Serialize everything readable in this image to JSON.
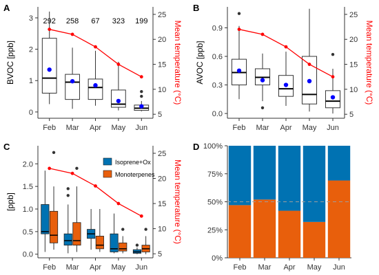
{
  "months": [
    "Feb",
    "Mar",
    "Apr",
    "May",
    "Jun"
  ],
  "colors": {
    "temp": "#ff0000",
    "mean": "#0000ff",
    "isoprene": "#0072b2",
    "monoterpenes": "#e85f0c"
  },
  "temperature": {
    "label": "Mean temperature (°C)",
    "ticks": [
      "5",
      "10",
      "15",
      "20",
      "25"
    ],
    "values": [
      22.0,
      21.0,
      18.5,
      15.0,
      12.5
    ]
  },
  "chart_data": [
    {
      "panel": "A",
      "type": "box",
      "ylabel": "BVOC [ppb]",
      "yticks": [
        "0",
        "1",
        "2",
        "3"
      ],
      "ylim": [
        -0.2,
        3.35
      ],
      "n_labels": [
        "292",
        "258",
        "67",
        "323",
        "199"
      ],
      "boxes": [
        {
          "lo": 0.25,
          "q1": 0.6,
          "med": 1.08,
          "q3": 2.35,
          "hi": 3.2,
          "mean": 1.35,
          "out": []
        },
        {
          "lo": 0.1,
          "q1": 0.4,
          "med": 0.95,
          "q3": 1.2,
          "hi": 2.05,
          "mean": 0.98,
          "out": []
        },
        {
          "lo": 0.2,
          "q1": 0.4,
          "med": 0.78,
          "q3": 1.05,
          "hi": 1.95,
          "mean": 0.85,
          "out": []
        },
        {
          "lo": 0.05,
          "q1": 0.15,
          "med": 0.25,
          "q3": 0.7,
          "hi": 1.6,
          "mean": 0.35,
          "out": []
        },
        {
          "lo": 0.02,
          "q1": 0.05,
          "med": 0.12,
          "q3": 0.22,
          "hi": 0.35,
          "mean": 0.18,
          "out": [
            0.5,
            0.65
          ]
        }
      ]
    },
    {
      "panel": "B",
      "type": "box",
      "ylabel": "AVOC [ppb]",
      "yticks": [
        "0.0",
        "0.3",
        "0.6",
        "0.9"
      ],
      "ylim": [
        -0.05,
        1.12
      ],
      "boxes": [
        {
          "lo": 0.15,
          "q1": 0.3,
          "med": 0.43,
          "q3": 0.57,
          "hi": 0.92,
          "mean": 0.45,
          "out": [
            1.05
          ]
        },
        {
          "lo": 0.13,
          "q1": 0.3,
          "med": 0.38,
          "q3": 0.47,
          "hi": 0.63,
          "mean": 0.35,
          "out": [
            0.06
          ]
        },
        {
          "lo": 0.08,
          "q1": 0.18,
          "med": 0.26,
          "q3": 0.4,
          "hi": 0.65,
          "mean": 0.3,
          "out": []
        },
        {
          "lo": 0.02,
          "q1": 0.1,
          "med": 0.2,
          "q3": 0.6,
          "hi": 1.1,
          "mean": 0.34,
          "out": []
        },
        {
          "lo": 0.0,
          "q1": 0.06,
          "med": 0.13,
          "q3": 0.24,
          "hi": 0.47,
          "mean": 0.17,
          "out": [
            0.62
          ]
        }
      ]
    },
    {
      "panel": "C",
      "type": "grouped_box",
      "ylabel": "[ppb]",
      "yticks": [
        "0.0",
        "0.5",
        "1.0",
        "1.5",
        "2.0"
      ],
      "ylim": [
        -0.08,
        2.4
      ],
      "series": [
        {
          "name": "Isoprene+Ox",
          "boxes": [
            {
              "lo": 0.05,
              "q1": 0.45,
              "med": 0.5,
              "q3": 1.1,
              "hi": 1.85,
              "out": []
            },
            {
              "lo": 0.02,
              "q1": 0.2,
              "med": 0.3,
              "q3": 0.45,
              "hi": 1.1,
              "out": [
                1.3,
                1.45
              ]
            },
            {
              "lo": 0.1,
              "q1": 0.35,
              "med": 0.45,
              "q3": 0.55,
              "hi": 1.0,
              "out": []
            },
            {
              "lo": 0.02,
              "q1": 0.05,
              "med": 0.12,
              "q3": 0.45,
              "hi": 0.9,
              "out": []
            },
            {
              "lo": 0.0,
              "q1": 0.02,
              "med": 0.05,
              "q3": 0.1,
              "hi": 0.15,
              "out": [
                0.2
              ]
            }
          ]
        },
        {
          "name": "Monoterpenes",
          "boxes": [
            {
              "lo": 0.1,
              "q1": 0.25,
              "med": 0.42,
              "q3": 0.95,
              "hi": 1.5,
              "out": [
                2.25
              ]
            },
            {
              "lo": 0.05,
              "q1": 0.2,
              "med": 0.3,
              "q3": 0.7,
              "hi": 1.5,
              "out": [
                1.9
              ]
            },
            {
              "lo": 0.05,
              "q1": 0.12,
              "med": 0.2,
              "q3": 0.4,
              "hi": 1.0,
              "out": []
            },
            {
              "lo": 0.02,
              "q1": 0.07,
              "med": 0.12,
              "q3": 0.25,
              "hi": 0.4,
              "out": [
                0.55
              ]
            },
            {
              "lo": 0.0,
              "q1": 0.05,
              "med": 0.12,
              "q3": 0.2,
              "hi": 0.4,
              "out": [
                0.55
              ]
            }
          ]
        }
      ]
    },
    {
      "panel": "D",
      "type": "stacked_bar_percent",
      "yticks": [
        "0%",
        "25%",
        "50%",
        "75%",
        "100%"
      ],
      "ylim": [
        0,
        100
      ],
      "reference_line": 50,
      "series": [
        {
          "name": "Monoterpenes",
          "values": [
            47,
            52,
            42,
            32,
            69
          ]
        },
        {
          "name": "Isoprene+Ox",
          "values": [
            53,
            48,
            58,
            68,
            31
          ]
        }
      ]
    }
  ]
}
